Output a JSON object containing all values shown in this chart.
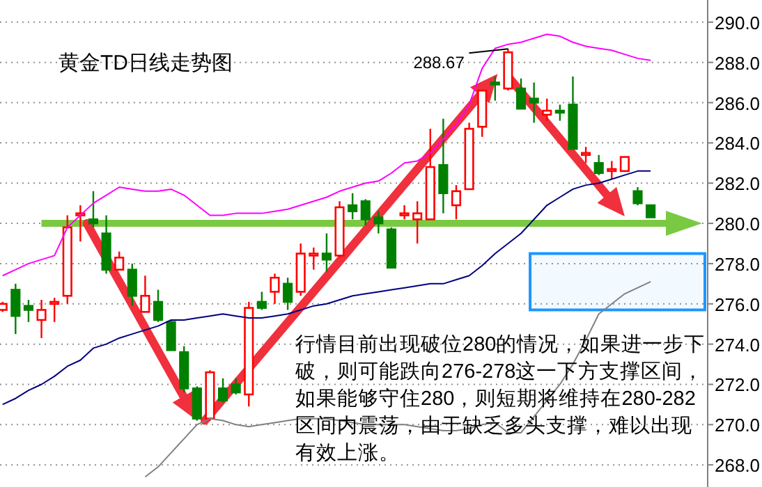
{
  "chart_data": {
    "type": "candlestick",
    "title": "黄金TD日线走势图",
    "categories": [
      null,
      null,
      null,
      null,
      null,
      null,
      null,
      null,
      null,
      null,
      null,
      null,
      null,
      null,
      null,
      null,
      null,
      null,
      null,
      null,
      null,
      null,
      null,
      null,
      null,
      null,
      null,
      null,
      null,
      null,
      null,
      null,
      null,
      null,
      null,
      null,
      null,
      null,
      null,
      null,
      null,
      null,
      null,
      null,
      null,
      null,
      null,
      null,
      null,
      null,
      null
    ],
    "colors": [
      "#ff0000",
      "#008000",
      "#008000",
      "#ff0000",
      "#ff0000",
      "#ff0000",
      "#ff0000",
      "#008000",
      "#008000",
      "#ff0000",
      "#008000",
      "#ff0000",
      "#008000",
      "#008000",
      "#008000",
      "#008000",
      "#ff0000",
      "#008000",
      "#008000",
      "#ff0000",
      "#008000",
      "#ff0000",
      "#008000",
      "#ff0000",
      "#ff0000",
      "#008000",
      "#ff0000",
      "#008000",
      "#008000",
      "#008000",
      "#008000",
      "#ff0000",
      "#ff0000",
      "#ff0000",
      "#008000",
      "#ff0000",
      "#ff0000",
      "#ff0000",
      "#008000",
      "#ff0000",
      "#008000",
      "#008000",
      "#ff0000",
      "#008000",
      "#008000",
      "#ff0000",
      "#008000",
      "#ff0000",
      "#ff0000",
      "#008000",
      "#008000"
    ],
    "ohlc": [
      [
        275.7,
        276.1,
        275.6,
        276.0
      ],
      [
        276.7,
        277.0,
        274.5,
        275.4
      ],
      [
        275.9,
        276.2,
        275.1,
        275.7
      ],
      [
        275.2,
        276.2,
        274.3,
        275.7
      ],
      [
        276.0,
        276.3,
        275.1,
        276.1
      ],
      [
        276.4,
        280.4,
        276.0,
        279.8
      ],
      [
        280.4,
        280.9,
        279.1,
        280.5
      ],
      [
        280.2,
        281.6,
        279.8,
        280.0
      ],
      [
        279.5,
        280.4,
        277.5,
        277.7
      ],
      [
        277.7,
        278.6,
        277.7,
        278.3
      ],
      [
        277.7,
        278.0,
        275.9,
        276.4
      ],
      [
        275.6,
        277.4,
        275.6,
        276.4
      ],
      [
        276.1,
        276.7,
        275.1,
        275.2
      ],
      [
        275.1,
        275.2,
        273.7,
        273.7
      ],
      [
        273.6,
        273.9,
        271.6,
        271.8
      ],
      [
        271.8,
        271.9,
        270.2,
        270.3
      ],
      [
        270.3,
        272.7,
        270.2,
        272.6
      ],
      [
        271.8,
        272.3,
        271.1,
        271.2
      ],
      [
        272.0,
        272.3,
        271.5,
        271.6
      ],
      [
        271.5,
        276.1,
        270.9,
        275.8
      ],
      [
        276.1,
        276.6,
        275.7,
        275.8
      ],
      [
        276.6,
        277.5,
        276.0,
        277.3
      ],
      [
        277.0,
        277.3,
        275.7,
        276.1
      ],
      [
        276.6,
        279.0,
        276.4,
        278.5
      ],
      [
        278.4,
        278.8,
        277.7,
        278.5
      ],
      [
        278.5,
        279.5,
        277.6,
        278.2
      ],
      [
        278.4,
        281.1,
        278.3,
        280.8
      ],
      [
        280.9,
        281.5,
        280.2,
        280.6
      ],
      [
        281.1,
        281.2,
        279.9,
        280.2
      ],
      [
        280.3,
        280.6,
        279.5,
        280.0
      ],
      [
        279.7,
        279.8,
        277.8,
        277.8
      ],
      [
        280.4,
        280.9,
        280.2,
        280.5
      ],
      [
        280.2,
        281.1,
        279.0,
        280.5
      ],
      [
        280.2,
        284.7,
        280.2,
        282.8
      ],
      [
        282.9,
        285.2,
        280.5,
        281.5
      ],
      [
        280.9,
        281.9,
        280.2,
        281.6
      ],
      [
        281.7,
        285.0,
        281.7,
        284.7
      ],
      [
        284.8,
        286.6,
        284.3,
        286.6
      ],
      [
        287.0,
        287.3,
        286.1,
        286.9
      ],
      [
        286.7,
        288.67,
        286.6,
        288.5
      ],
      [
        286.7,
        287.2,
        285.7,
        285.7
      ],
      [
        286.2,
        287.0,
        285.0,
        286.0
      ],
      [
        285.4,
        286.2,
        285.1,
        285.6
      ],
      [
        285.6,
        285.9,
        285.1,
        285.5
      ],
      [
        285.9,
        287.3,
        283.7,
        283.7
      ],
      [
        283.4,
        283.8,
        283.0,
        283.5
      ],
      [
        283.0,
        283.4,
        282.4,
        282.5
      ],
      [
        282.6,
        283.1,
        282.2,
        282.7
      ],
      [
        282.6,
        283.3,
        282.6,
        283.3
      ],
      [
        281.6,
        281.8,
        280.9,
        281.0
      ],
      [
        280.9,
        280.9,
        280.3,
        280.3
      ]
    ],
    "series": [
      {
        "type": "line",
        "color": "#ff00ff",
        "values": [
          277.4,
          277.7,
          278.0,
          278.2,
          278.4,
          279.8,
          280.4,
          281.0,
          281.4,
          281.8,
          281.7,
          281.6,
          281.6,
          281.7,
          281.4,
          280.9,
          280.4,
          280.4,
          280.5,
          280.5,
          280.5,
          280.6,
          280.7,
          280.9,
          281.1,
          281.3,
          281.6,
          281.8,
          282.0,
          282.1,
          282.5,
          283.0,
          283.1,
          283.5,
          284.2,
          284.9,
          285.9,
          287.7,
          288.7,
          288.9,
          289.0,
          289.2,
          289.4,
          289.3,
          289.0,
          288.8,
          288.7,
          288.6,
          288.4,
          288.2,
          288.1
        ]
      },
      {
        "type": "line",
        "color": "#000080",
        "values": [
          271.0,
          271.3,
          271.7,
          272.0,
          272.4,
          272.9,
          273.2,
          273.8,
          274.0,
          274.3,
          274.5,
          274.7,
          274.9,
          275.2,
          275.2,
          275.3,
          275.4,
          275.5,
          275.4,
          275.3,
          275.3,
          275.4,
          275.5,
          275.7,
          275.9,
          276.0,
          276.2,
          276.4,
          276.5,
          276.6,
          276.7,
          276.8,
          276.9,
          277.0,
          277.0,
          277.2,
          277.4,
          277.9,
          278.5,
          279.0,
          279.5,
          280.2,
          280.9,
          281.3,
          281.7,
          281.9,
          282.0,
          282.2,
          282.4,
          282.6,
          282.6
        ]
      },
      {
        "type": "line",
        "color": "#808080",
        "values": [
          null,
          null,
          null,
          null,
          null,
          null,
          null,
          null,
          null,
          null,
          null,
          267.4,
          267.9,
          268.6,
          269.3,
          270.0,
          270.3,
          270.2,
          270.0,
          269.9,
          270.0,
          270.1,
          270.2,
          270.3,
          270.3,
          270.3,
          270.2,
          270.1,
          270.0,
          270.0,
          270.0,
          270.0,
          269.9,
          269.8,
          269.7,
          269.7,
          269.8,
          270.0,
          270.1,
          269.6,
          269.6,
          270.4,
          271.2,
          272.0,
          273.0,
          274.2,
          275.5,
          276.0,
          276.5,
          276.8,
          277.1
        ]
      }
    ],
    "ylim": [
      266.9,
      291.1
    ],
    "yticks": [
      {
        "value": 268,
        "label": "268.0"
      },
      {
        "value": 270,
        "label": "270.0"
      },
      {
        "value": 272,
        "label": "272.0"
      },
      {
        "value": 274,
        "label": "274.0"
      },
      {
        "value": 276,
        "label": "276.0"
      },
      {
        "value": 278,
        "label": "278.0"
      },
      {
        "value": 280,
        "label": "280.0"
      },
      {
        "value": 282,
        "label": "282.0"
      },
      {
        "value": 284,
        "label": "284.0"
      },
      {
        "value": 286,
        "label": "286.0"
      },
      {
        "value": 288,
        "label": "288.0"
      },
      {
        "value": 290,
        "label": "290.0"
      }
    ],
    "grid": "y",
    "tick_labels": "y",
    "ref_lines": [
      {
        "axis": "y",
        "value": 280,
        "color": "#7ac943"
      }
    ],
    "bands": [
      {
        "axis": "y",
        "from": 275.7,
        "to": 278.5,
        "color": "#1e96ff"
      }
    ],
    "annotations": [
      "288.67",
      "行情目前出现破位280的情况，如果进一步下破，则可能跌向276-278这一下方支撑区间，如果能够守住280，则短期将维持在280-282区间内震荡，由于缺乏多头支撑，难以出现有效上涨。"
    ]
  }
}
